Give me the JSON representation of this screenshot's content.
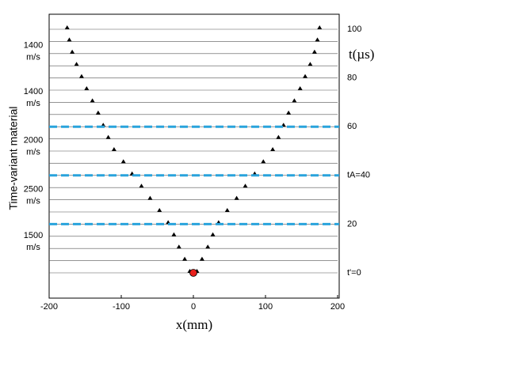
{
  "chart_data": {
    "type": "waterfall",
    "y_label": "Time-variant material",
    "x_label": "x(mm)",
    "y2_label": "t(µs)",
    "xlim": [
      -200,
      200
    ],
    "xticks": [
      -200,
      -100,
      0,
      100,
      200
    ],
    "ylim": [
      -10,
      110
    ],
    "yticks": [
      {
        "value": 0,
        "label": "t'=0"
      },
      20,
      {
        "value": 40,
        "label": "tA=40"
      },
      60,
      80,
      100
    ],
    "boundaries": [
      20,
      40,
      60
    ],
    "boundary_color": "#29a3dc",
    "source": {
      "x": 0,
      "t": 0,
      "color": "#e8201c"
    },
    "materials": [
      {
        "speed": "1400",
        "unit": "m/s",
        "t": 91
      },
      {
        "speed": "1400",
        "unit": "m/s",
        "t": 72
      },
      {
        "speed": "2000",
        "unit": "m/s",
        "t": 52
      },
      {
        "speed": "2500",
        "unit": "m/s",
        "t": 32
      },
      {
        "speed": "1500",
        "unit": "m/s",
        "t": 13
      }
    ],
    "trace_t": [
      0,
      5,
      10,
      15,
      20,
      25,
      30,
      35,
      40,
      45,
      50,
      55,
      60,
      65,
      70,
      75,
      80,
      85,
      90,
      95,
      100
    ],
    "front_x": [
      5,
      12,
      20,
      27,
      35,
      47,
      60,
      72,
      85,
      97,
      110,
      118,
      125,
      132,
      140,
      148,
      155,
      162,
      168,
      172,
      175
    ]
  }
}
